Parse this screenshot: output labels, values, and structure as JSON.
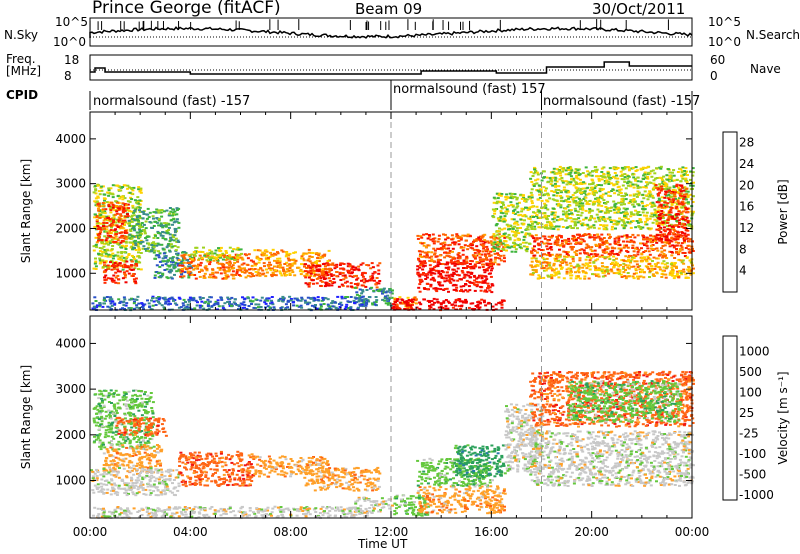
{
  "header": {
    "station": "Prince George (fitACF)",
    "beam": "Beam 09",
    "date": "30/Oct/2011"
  },
  "top_panels": {
    "nsky_label": "N.Sky",
    "nsearch_label": "N.Search",
    "noise_ticks": [
      "10^5",
      "10^0"
    ],
    "freq_label_1": "Freq.",
    "freq_label_2": "[MHz]",
    "freq_ticks": [
      "18",
      "8"
    ],
    "nave_label": "Nave",
    "nave_ticks": [
      "60",
      "0"
    ],
    "cpid_label": "CPID",
    "cpid_segments": [
      {
        "text": "normalsound (fast) -157",
        "start_hour": 0
      },
      {
        "text": "normalsound (fast) 157",
        "start_hour": 12
      },
      {
        "text": "normalsound (fast) -157",
        "start_hour": 18
      }
    ]
  },
  "chart_data": [
    {
      "type": "heatmap",
      "panel": "power",
      "ylabel": "Slant Range [km]",
      "ylim": [
        180,
        4600
      ],
      "yticks": [
        1000,
        2000,
        3000,
        4000
      ],
      "xlim": [
        0,
        24
      ],
      "xtick_labels": [
        "00:00",
        "04:00",
        "08:00",
        "12:00",
        "16:00",
        "20:00",
        "00:00"
      ],
      "colorbar": {
        "label": "Power [dB]",
        "ticks": [
          4,
          8,
          12,
          16,
          20,
          24,
          28
        ],
        "colors": [
          "#1f1fff",
          "#2850c8",
          "#3a8c8c",
          "#3cb43c",
          "#a0d21e",
          "#ffd200",
          "#ffa000",
          "#ff6400",
          "#ff2800",
          "#f00000"
        ]
      },
      "blobs": [
        {
          "h0": 0.1,
          "h1": 2.0,
          "r0": 1100,
          "r1": 3000,
          "v": 14
        },
        {
          "h0": 0.2,
          "h1": 1.5,
          "r0": 1700,
          "r1": 2600,
          "v": 24
        },
        {
          "h0": 0.5,
          "h1": 1.8,
          "r0": 800,
          "r1": 1300,
          "v": 26
        },
        {
          "h0": 1.5,
          "h1": 3.5,
          "r0": 1500,
          "r1": 2500,
          "v": 10
        },
        {
          "h0": 2.5,
          "h1": 4.0,
          "r0": 900,
          "r1": 1500,
          "v": 8
        },
        {
          "h0": 3.5,
          "h1": 6.5,
          "r0": 900,
          "r1": 1450,
          "v": 22
        },
        {
          "h0": 4.0,
          "h1": 6.0,
          "r0": 1300,
          "r1": 1600,
          "v": 14
        },
        {
          "h0": 6.5,
          "h1": 9.5,
          "r0": 950,
          "r1": 1550,
          "v": 20
        },
        {
          "h0": 8.5,
          "h1": 11.5,
          "r0": 700,
          "r1": 1250,
          "v": 26
        },
        {
          "h0": 10.5,
          "h1": 12.0,
          "r0": 300,
          "r1": 700,
          "v": 8
        },
        {
          "h0": 12.0,
          "h1": 13.0,
          "r0": 250,
          "r1": 500,
          "v": 20
        },
        {
          "h0": 12.0,
          "h1": 16.5,
          "r0": 200,
          "r1": 450,
          "v": 30
        },
        {
          "h0": 13.0,
          "h1": 16.0,
          "r0": 600,
          "r1": 1300,
          "v": 28
        },
        {
          "h0": 13.0,
          "h1": 16.5,
          "r0": 1200,
          "r1": 1900,
          "v": 24
        },
        {
          "h0": 16.0,
          "h1": 17.5,
          "r0": 1500,
          "r1": 2800,
          "v": 14
        },
        {
          "h0": 17.5,
          "h1": 24.0,
          "r0": 1400,
          "r1": 1900,
          "v": 24
        },
        {
          "h0": 17.5,
          "h1": 24.0,
          "r0": 900,
          "r1": 1400,
          "v": 18
        },
        {
          "h0": 17.5,
          "h1": 24.0,
          "r0": 2000,
          "r1": 3400,
          "v": 14
        },
        {
          "h0": 22.5,
          "h1": 23.8,
          "r0": 1700,
          "r1": 3000,
          "v": 26
        },
        {
          "h0": 0.0,
          "h1": 11.0,
          "r0": 200,
          "r1": 500,
          "v": 6
        }
      ]
    },
    {
      "type": "heatmap",
      "panel": "velocity",
      "ylabel": "Slant Range [km]",
      "ylim": [
        180,
        4600
      ],
      "yticks": [
        1000,
        2000,
        3000,
        4000
      ],
      "xlim": [
        0,
        24
      ],
      "xlabel": "Time UT",
      "xtick_labels": [
        "00:00",
        "04:00",
        "08:00",
        "12:00",
        "16:00",
        "20:00",
        "00:00"
      ],
      "colorbar": {
        "label": "Velocity [m s⁻¹]",
        "ticks": [
          "1000",
          "500",
          "100",
          "25",
          "-25",
          "-100",
          "-500",
          "-1000"
        ],
        "colors": [
          "#1e3cd2",
          "#2878aa",
          "#2aa05a",
          "#64c83c",
          "#c8c8c8",
          "#ffa028",
          "#ff6414",
          "#f01414"
        ]
      },
      "blobs": [
        {
          "h0": 0.1,
          "h1": 2.5,
          "r0": 1700,
          "r1": 3000,
          "v": 3
        },
        {
          "h0": 0.5,
          "h1": 2.8,
          "r0": 1200,
          "r1": 1800,
          "v": 5
        },
        {
          "h0": 0.0,
          "h1": 3.5,
          "r0": 700,
          "r1": 1300,
          "v": 4
        },
        {
          "h0": 1.0,
          "h1": 3.0,
          "r0": 2000,
          "r1": 2400,
          "v": 6
        },
        {
          "h0": 3.5,
          "h1": 6.5,
          "r0": 900,
          "r1": 1650,
          "v": 6
        },
        {
          "h0": 6.5,
          "h1": 9.5,
          "r0": 1100,
          "r1": 1550,
          "v": 5
        },
        {
          "h0": 8.5,
          "h1": 11.5,
          "r0": 800,
          "r1": 1300,
          "v": 5
        },
        {
          "h0": 10.5,
          "h1": 12.0,
          "r0": 300,
          "r1": 650,
          "v": 4
        },
        {
          "h0": 12.0,
          "h1": 13.5,
          "r0": 250,
          "r1": 700,
          "v": 3
        },
        {
          "h0": 13.0,
          "h1": 16.5,
          "r0": 300,
          "r1": 900,
          "v": 5
        },
        {
          "h0": 13.0,
          "h1": 16.0,
          "r0": 900,
          "r1": 1500,
          "v": 3
        },
        {
          "h0": 14.5,
          "h1": 16.5,
          "r0": 1100,
          "r1": 1800,
          "v": 2
        },
        {
          "h0": 16.5,
          "h1": 18.0,
          "r0": 1200,
          "r1": 2700,
          "v": 4
        },
        {
          "h0": 17.5,
          "h1": 24.0,
          "r0": 900,
          "r1": 2100,
          "v": 4
        },
        {
          "h0": 17.5,
          "h1": 24.0,
          "r0": 2200,
          "r1": 3400,
          "v": 6
        },
        {
          "h0": 19.0,
          "h1": 23.5,
          "r0": 2300,
          "r1": 3200,
          "v": 3
        },
        {
          "h0": 0.0,
          "h1": 11.0,
          "r0": 200,
          "r1": 450,
          "v": 4
        }
      ]
    }
  ]
}
